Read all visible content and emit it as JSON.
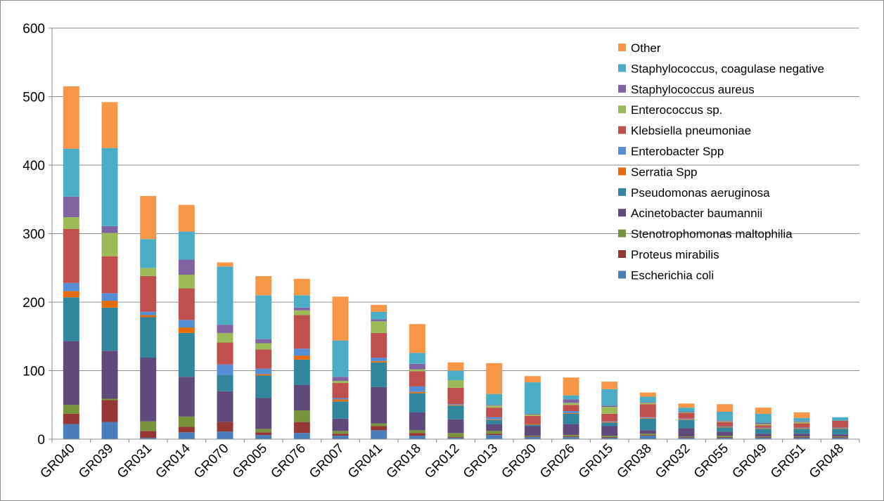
{
  "chart_data": {
    "type": "bar",
    "stacked": true,
    "title": "",
    "xlabel": "",
    "ylabel": "",
    "ylim": [
      0,
      600
    ],
    "yticks": [
      0,
      100,
      200,
      300,
      400,
      500,
      600
    ],
    "grid": true,
    "legend_position": "top-right",
    "categories": [
      "GR040",
      "GR039",
      "GR031",
      "GR014",
      "GR070",
      "GR005",
      "GR076",
      "GR007",
      "GR041",
      "GR018",
      "GR012",
      "GR013",
      "GR030",
      "GR026",
      "GR015",
      "GR038",
      "GR032",
      "GR055",
      "GR049",
      "GR051",
      "GR048"
    ],
    "series": [
      {
        "name": "Escherichia coli",
        "color": "#4a7ebb",
        "values": [
          22,
          25,
          2,
          10,
          11,
          6,
          9,
          5,
          13,
          5,
          2,
          6,
          3,
          3,
          2,
          5,
          2,
          2,
          2,
          2,
          2
        ]
      },
      {
        "name": "Proteus mirabilis",
        "color": "#953735",
        "values": [
          15,
          32,
          10,
          8,
          14,
          4,
          16,
          3,
          6,
          4,
          1,
          2,
          1,
          1,
          1,
          1,
          1,
          1,
          1,
          1,
          1
        ]
      },
      {
        "name": "Stenotrophomonas maltophilia",
        "color": "#77933c",
        "values": [
          13,
          2,
          14,
          15,
          0,
          5,
          17,
          4,
          4,
          4,
          6,
          4,
          1,
          2,
          2,
          2,
          1,
          2,
          1,
          1,
          1
        ]
      },
      {
        "name": "Acinetobacter baumannii",
        "color": "#604a7b",
        "values": [
          93,
          70,
          93,
          58,
          45,
          45,
          37,
          18,
          53,
          26,
          20,
          10,
          14,
          16,
          14,
          5,
          12,
          6,
          4,
          4,
          3
        ]
      },
      {
        "name": "Pseudomonas aeruginosa",
        "color": "#31859c",
        "values": [
          64,
          63,
          59,
          64,
          24,
          33,
          37,
          25,
          36,
          28,
          20,
          6,
          2,
          15,
          5,
          17,
          12,
          6,
          7,
          7,
          8
        ]
      },
      {
        "name": "Serratia Spp",
        "color": "#e46c0a",
        "values": [
          9,
          10,
          3,
          8,
          0,
          2,
          6,
          3,
          2,
          2,
          1,
          1,
          1,
          1,
          1,
          1,
          1,
          1,
          1,
          1,
          1
        ]
      },
      {
        "name": "Enterobacter Spp",
        "color": "#558ed5",
        "values": [
          12,
          11,
          5,
          11,
          15,
          8,
          10,
          2,
          5,
          8,
          1,
          3,
          0,
          3,
          1,
          1,
          1,
          1,
          1,
          1,
          1
        ]
      },
      {
        "name": "Klebsiella pneumoniae",
        "color": "#c0504d",
        "values": [
          79,
          54,
          52,
          46,
          32,
          28,
          49,
          22,
          36,
          22,
          24,
          14,
          12,
          9,
          11,
          19,
          8,
          6,
          3,
          6,
          10
        ]
      },
      {
        "name": "Enterococcus sp.",
        "color": "#9bbb59",
        "values": [
          17,
          34,
          12,
          20,
          14,
          9,
          7,
          3,
          17,
          3,
          11,
          3,
          2,
          3,
          10,
          2,
          1,
          1,
          2,
          2,
          0
        ]
      },
      {
        "name": "Staphylococcus aureus",
        "color": "#8064a2",
        "values": [
          30,
          10,
          0,
          22,
          12,
          6,
          4,
          6,
          3,
          8,
          0,
          1,
          1,
          5,
          2,
          1,
          1,
          1,
          2,
          1,
          0
        ]
      },
      {
        "name": "Staphylococcus, coagulase negative",
        "color": "#4bacc6",
        "values": [
          70,
          114,
          42,
          41,
          85,
          64,
          18,
          53,
          11,
          16,
          14,
          16,
          46,
          6,
          24,
          8,
          6,
          13,
          13,
          5,
          5
        ]
      },
      {
        "name": "Other",
        "color": "#f79646",
        "values": [
          91,
          67,
          63,
          39,
          6,
          28,
          24,
          64,
          10,
          42,
          12,
          45,
          9,
          26,
          11,
          6,
          6,
          11,
          9,
          8,
          0
        ]
      }
    ]
  }
}
